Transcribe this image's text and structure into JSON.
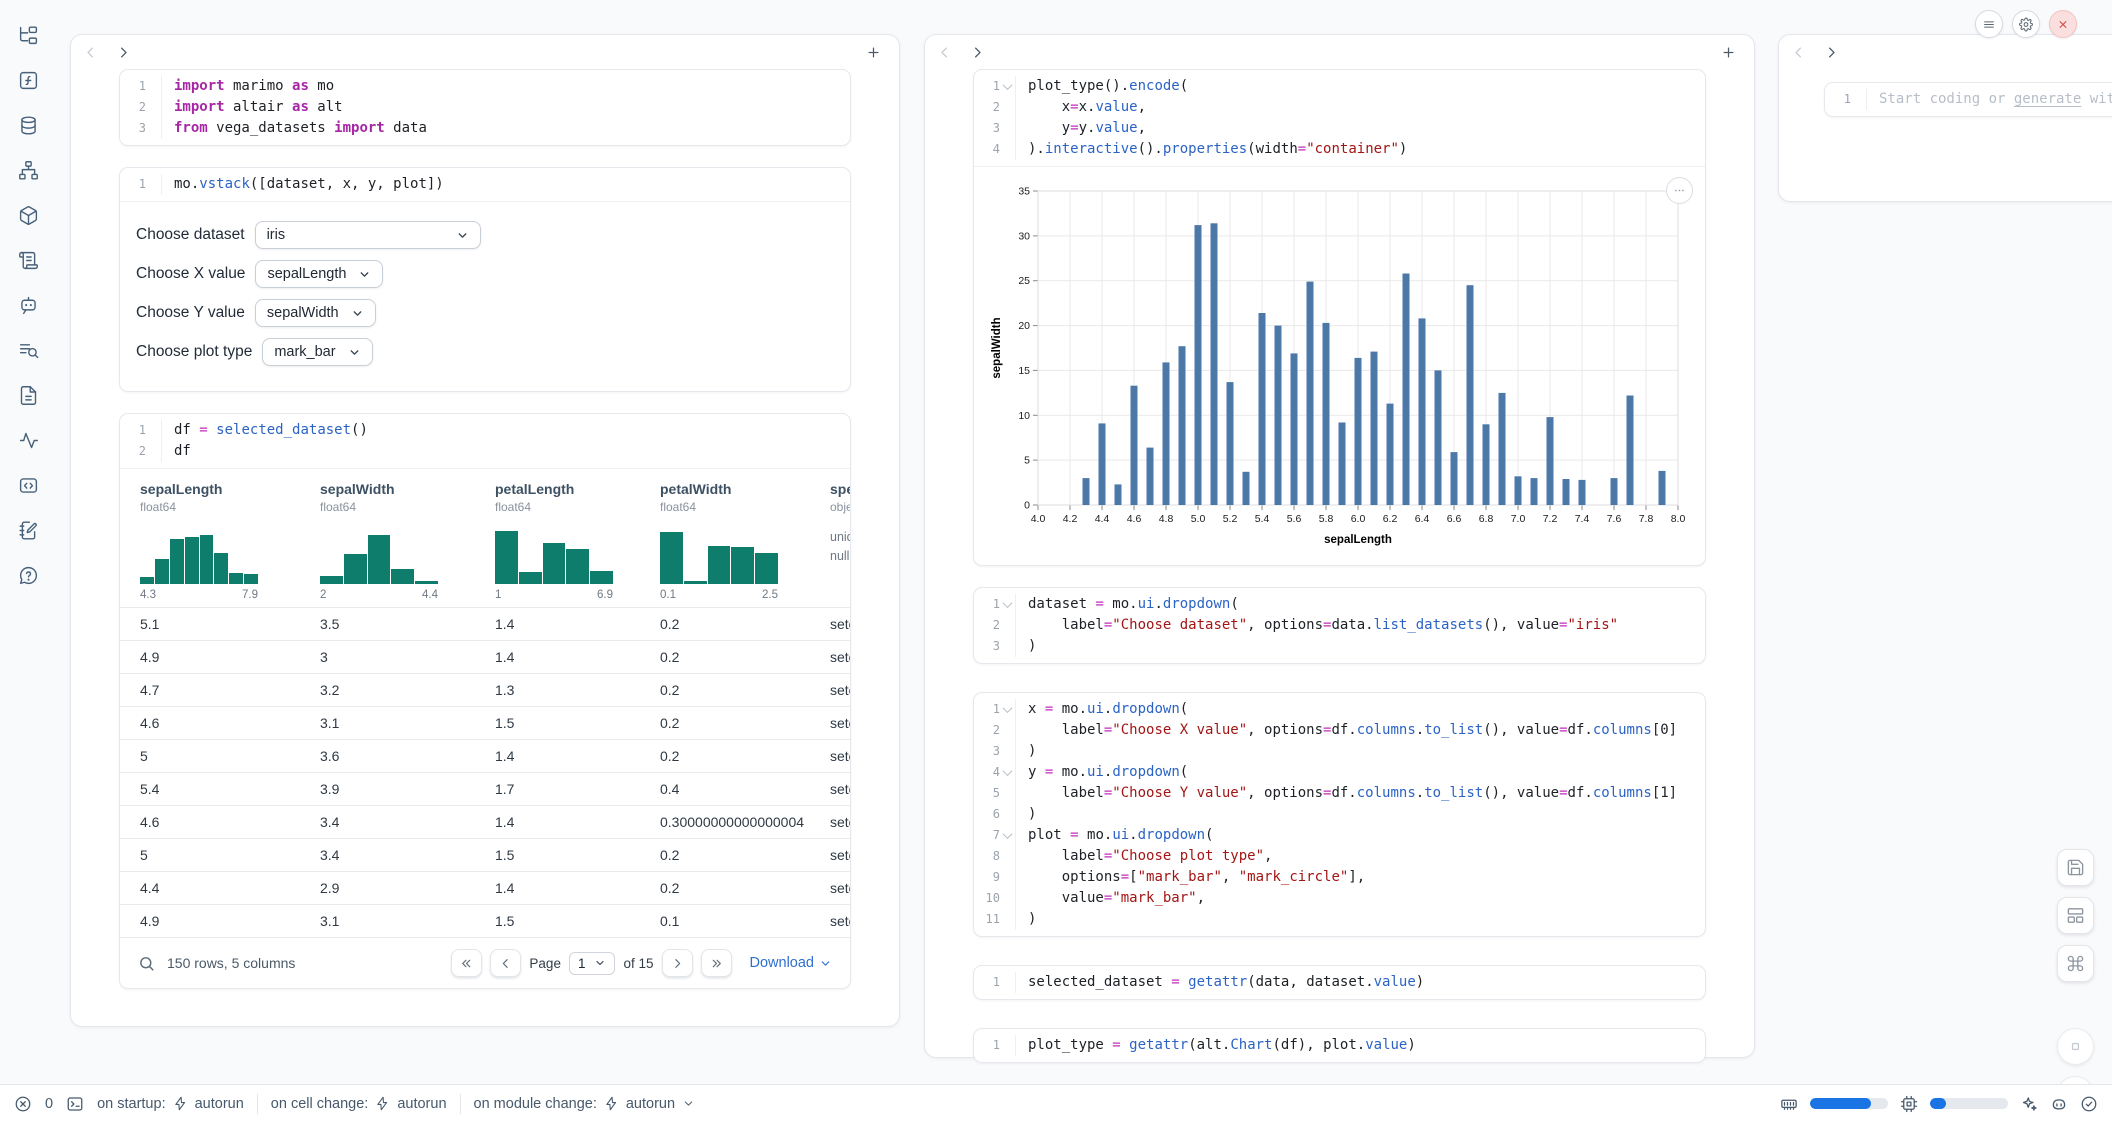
{
  "colors": {
    "accent_blue": "#1b74e4",
    "hist_teal": "#0e7d6c",
    "bar_blue": "#4c78a8",
    "code_keyword": "#a626a4",
    "code_function": "#2b63c5",
    "code_string": "#a31515",
    "close_red": "#d64545"
  },
  "sidebar": {
    "icons": [
      "file-explorer",
      "functions",
      "datasources",
      "dependency-graph",
      "packages",
      "logs",
      "ai-chat",
      "scratchpad",
      "documentation",
      "tracing",
      "snippets",
      "notebook",
      "help"
    ]
  },
  "left_panel": {
    "cells": {
      "imports": {
        "lines": [
          {
            "n": "1",
            "t": [
              [
                "kw",
                "import"
              ],
              [
                "pl",
                " marimo "
              ],
              [
                "kw",
                "as"
              ],
              [
                "pl",
                " mo"
              ]
            ]
          },
          {
            "n": "2",
            "t": [
              [
                "kw",
                "import"
              ],
              [
                "pl",
                " altair "
              ],
              [
                "kw",
                "as"
              ],
              [
                "pl",
                " alt"
              ]
            ]
          },
          {
            "n": "3",
            "t": [
              [
                "kw",
                "from"
              ],
              [
                "pl",
                " vega_datasets "
              ],
              [
                "kw",
                "import"
              ],
              [
                "pl",
                " data"
              ]
            ]
          }
        ]
      },
      "vstack": {
        "lines": [
          {
            "n": "1",
            "t": [
              [
                "pl",
                "mo."
              ],
              [
                "fn",
                "vstack"
              ],
              [
                "pl",
                "([dataset, x, y, plot])"
              ]
            ]
          }
        ],
        "output": {
          "dropdowns": [
            {
              "label": "Choose dataset",
              "value": "iris"
            },
            {
              "label": "Choose X value",
              "value": "sepalLength"
            },
            {
              "label": "Choose Y value",
              "value": "sepalWidth"
            },
            {
              "label": "Choose plot type",
              "value": "mark_bar"
            }
          ]
        }
      },
      "df": {
        "lines": [
          {
            "n": "1",
            "t": [
              [
                "pl",
                "df "
              ],
              [
                "op",
                "="
              ],
              [
                "pl",
                " "
              ],
              [
                "fn",
                "selected_dataset"
              ],
              [
                "pl",
                "()"
              ]
            ]
          },
          {
            "n": "2",
            "t": [
              [
                "pl",
                "df"
              ]
            ]
          }
        ]
      }
    },
    "table": {
      "columns": [
        {
          "name": "sepalLength",
          "dtype": "float64",
          "min": "4.3",
          "max": "7.9",
          "hist": [
            0.13,
            0.45,
            0.8,
            0.84,
            0.87,
            0.56,
            0.2,
            0.17
          ]
        },
        {
          "name": "sepalWidth",
          "dtype": "float64",
          "min": "2",
          "max": "4.4",
          "hist": [
            0.14,
            0.53,
            0.88,
            0.27,
            0.05
          ]
        },
        {
          "name": "petalLength",
          "dtype": "float64",
          "min": "1",
          "max": "6.9",
          "hist": [
            0.95,
            0.22,
            0.73,
            0.62,
            0.24
          ]
        },
        {
          "name": "petalWidth",
          "dtype": "float64",
          "min": "0.1",
          "max": "2.5",
          "hist": [
            0.92,
            0.05,
            0.68,
            0.66,
            0.56
          ]
        },
        {
          "name": "species",
          "dtype": "object",
          "meta": [
            "unique:",
            "nulls:"
          ]
        }
      ],
      "rows": [
        [
          "5.1",
          "3.5",
          "1.4",
          "0.2",
          "setosa"
        ],
        [
          "4.9",
          "3",
          "1.4",
          "0.2",
          "setosa"
        ],
        [
          "4.7",
          "3.2",
          "1.3",
          "0.2",
          "setosa"
        ],
        [
          "4.6",
          "3.1",
          "1.5",
          "0.2",
          "setosa"
        ],
        [
          "5",
          "3.6",
          "1.4",
          "0.2",
          "setosa"
        ],
        [
          "5.4",
          "3.9",
          "1.7",
          "0.4",
          "setosa"
        ],
        [
          "4.6",
          "3.4",
          "1.4",
          "0.30000000000000004",
          "setosa"
        ],
        [
          "5",
          "3.4",
          "1.5",
          "0.2",
          "setosa"
        ],
        [
          "4.4",
          "2.9",
          "1.4",
          "0.2",
          "setosa"
        ],
        [
          "4.9",
          "3.1",
          "1.5",
          "0.1",
          "setosa"
        ]
      ],
      "footer": {
        "summary": "150 rows, 5 columns",
        "page_label": "Page",
        "page_value": "1",
        "of_text": "of 15",
        "download_label": "Download"
      }
    }
  },
  "middle_panel": {
    "cells": {
      "plot": {
        "lines": [
          {
            "n": "1",
            "fold": true,
            "t": [
              [
                "pl",
                "plot_type"
              ],
              [
                "pl",
                "()."
              ],
              [
                "fn",
                "encode"
              ],
              [
                "pl",
                "("
              ]
            ]
          },
          {
            "n": "2",
            "t": [
              [
                "pl",
                "    x"
              ],
              [
                "op",
                "="
              ],
              [
                "pl",
                "x."
              ],
              [
                "fn",
                "value"
              ],
              [
                "pl",
                ","
              ]
            ]
          },
          {
            "n": "3",
            "t": [
              [
                "pl",
                "    y"
              ],
              [
                "op",
                "="
              ],
              [
                "pl",
                "y."
              ],
              [
                "fn",
                "value"
              ],
              [
                "pl",
                ","
              ]
            ]
          },
          {
            "n": "4",
            "t": [
              [
                "pl",
                ")."
              ],
              [
                "fn",
                "interactive"
              ],
              [
                "pl",
                "()."
              ],
              [
                "fn",
                "properties"
              ],
              [
                "pl",
                "(width"
              ],
              [
                "op",
                "="
              ],
              [
                "str",
                "\"container\""
              ],
              [
                "pl",
                ")"
              ]
            ]
          }
        ]
      },
      "dataset": {
        "lines": [
          {
            "n": "1",
            "fold": true,
            "t": [
              [
                "pl",
                "dataset "
              ],
              [
                "op",
                "="
              ],
              [
                "pl",
                " mo."
              ],
              [
                "fn",
                "ui"
              ],
              [
                "pl",
                "."
              ],
              [
                "fn",
                "dropdown"
              ],
              [
                "pl",
                "("
              ]
            ]
          },
          {
            "n": "2",
            "t": [
              [
                "pl",
                "    label"
              ],
              [
                "op",
                "="
              ],
              [
                "str",
                "\"Choose dataset\""
              ],
              [
                "pl",
                ", options"
              ],
              [
                "op",
                "="
              ],
              [
                "pl",
                "data."
              ],
              [
                "fn",
                "list_datasets"
              ],
              [
                "pl",
                "(), value"
              ],
              [
                "op",
                "="
              ],
              [
                "str",
                "\"iris\""
              ]
            ]
          },
          {
            "n": "3",
            "t": [
              [
                "pl",
                ")"
              ]
            ]
          }
        ]
      },
      "xyplot": {
        "lines": [
          {
            "n": "1",
            "fold": true,
            "t": [
              [
                "pl",
                "x "
              ],
              [
                "op",
                "="
              ],
              [
                "pl",
                " mo."
              ],
              [
                "fn",
                "ui"
              ],
              [
                "pl",
                "."
              ],
              [
                "fn",
                "dropdown"
              ],
              [
                "pl",
                "("
              ]
            ]
          },
          {
            "n": "2",
            "t": [
              [
                "pl",
                "    label"
              ],
              [
                "op",
                "="
              ],
              [
                "str",
                "\"Choose X value\""
              ],
              [
                "pl",
                ", options"
              ],
              [
                "op",
                "="
              ],
              [
                "pl",
                "df."
              ],
              [
                "fn",
                "columns"
              ],
              [
                "pl",
                "."
              ],
              [
                "fn",
                "to_list"
              ],
              [
                "pl",
                "(), value"
              ],
              [
                "op",
                "="
              ],
              [
                "pl",
                "df."
              ],
              [
                "fn",
                "columns"
              ],
              [
                "pl",
                "[0]"
              ]
            ]
          },
          {
            "n": "3",
            "t": [
              [
                "pl",
                ")"
              ]
            ]
          },
          {
            "n": "4",
            "fold": true,
            "t": [
              [
                "pl",
                "y "
              ],
              [
                "op",
                "="
              ],
              [
                "pl",
                " mo."
              ],
              [
                "fn",
                "ui"
              ],
              [
                "pl",
                "."
              ],
              [
                "fn",
                "dropdown"
              ],
              [
                "pl",
                "("
              ]
            ]
          },
          {
            "n": "5",
            "t": [
              [
                "pl",
                "    label"
              ],
              [
                "op",
                "="
              ],
              [
                "str",
                "\"Choose Y value\""
              ],
              [
                "pl",
                ", options"
              ],
              [
                "op",
                "="
              ],
              [
                "pl",
                "df."
              ],
              [
                "fn",
                "columns"
              ],
              [
                "pl",
                "."
              ],
              [
                "fn",
                "to_list"
              ],
              [
                "pl",
                "(), value"
              ],
              [
                "op",
                "="
              ],
              [
                "pl",
                "df."
              ],
              [
                "fn",
                "columns"
              ],
              [
                "pl",
                "[1]"
              ]
            ]
          },
          {
            "n": "6",
            "t": [
              [
                "pl",
                ")"
              ]
            ]
          },
          {
            "n": "7",
            "fold": true,
            "t": [
              [
                "pl",
                "plot "
              ],
              [
                "op",
                "="
              ],
              [
                "pl",
                " mo."
              ],
              [
                "fn",
                "ui"
              ],
              [
                "pl",
                "."
              ],
              [
                "fn",
                "dropdown"
              ],
              [
                "pl",
                "("
              ]
            ]
          },
          {
            "n": "8",
            "t": [
              [
                "pl",
                "    label"
              ],
              [
                "op",
                "="
              ],
              [
                "str",
                "\"Choose plot type\""
              ],
              [
                "pl",
                ","
              ]
            ]
          },
          {
            "n": "9",
            "t": [
              [
                "pl",
                "    options"
              ],
              [
                "op",
                "="
              ],
              [
                "pl",
                "["
              ],
              [
                "str",
                "\"mark_bar\""
              ],
              [
                "pl",
                ", "
              ],
              [
                "str",
                "\"mark_circle\""
              ],
              [
                "pl",
                "],"
              ]
            ]
          },
          {
            "n": "10",
            "t": [
              [
                "pl",
                "    value"
              ],
              [
                "op",
                "="
              ],
              [
                "str",
                "\"mark_bar\""
              ],
              [
                "pl",
                ","
              ]
            ]
          },
          {
            "n": "11",
            "t": [
              [
                "pl",
                ")"
              ]
            ]
          }
        ]
      },
      "selected": {
        "lines": [
          {
            "n": "1",
            "t": [
              [
                "pl",
                "selected_dataset "
              ],
              [
                "op",
                "="
              ],
              [
                "pl",
                " "
              ],
              [
                "fn",
                "getattr"
              ],
              [
                "pl",
                "(data, dataset."
              ],
              [
                "fn",
                "value"
              ],
              [
                "pl",
                ")"
              ]
            ]
          }
        ]
      },
      "plot_type": {
        "lines": [
          {
            "n": "1",
            "t": [
              [
                "pl",
                "plot_type "
              ],
              [
                "op",
                "="
              ],
              [
                "pl",
                " "
              ],
              [
                "fn",
                "getattr"
              ],
              [
                "pl",
                "(alt."
              ],
              [
                "fn",
                "Chart"
              ],
              [
                "pl",
                "(df), plot."
              ],
              [
                "fn",
                "value"
              ],
              [
                "pl",
                ")"
              ]
            ]
          }
        ]
      }
    }
  },
  "chart_data": {
    "type": "bar",
    "xlabel": "sepalLength",
    "ylabel": "sepalWidth",
    "x": [
      4.3,
      4.4,
      4.5,
      4.6,
      4.7,
      4.8,
      4.9,
      5.0,
      5.1,
      5.2,
      5.3,
      5.4,
      5.5,
      5.6,
      5.7,
      5.8,
      5.9,
      6.0,
      6.1,
      6.2,
      6.3,
      6.4,
      6.5,
      6.6,
      6.7,
      6.8,
      6.9,
      7.0,
      7.1,
      7.2,
      7.3,
      7.4,
      7.6,
      7.7,
      7.9
    ],
    "values": [
      3.0,
      9.1,
      2.3,
      13.3,
      6.4,
      15.9,
      17.7,
      31.2,
      31.4,
      13.7,
      3.7,
      21.4,
      20.0,
      16.9,
      24.9,
      20.3,
      9.2,
      16.4,
      17.1,
      11.3,
      25.8,
      20.8,
      15.0,
      5.9,
      24.5,
      9.0,
      12.5,
      3.2,
      3.0,
      9.8,
      2.9,
      2.8,
      3.0,
      12.2,
      3.8
    ],
    "xlim": [
      4.0,
      8.0
    ],
    "ylim": [
      0,
      35
    ],
    "x_tick_step": 0.2,
    "y_tick_step": 5,
    "bar_color": "#4c78a8",
    "grid": true,
    "legend": "none"
  },
  "right_panel": {
    "cell": {
      "line_number": "1",
      "placeholder_pre": "Start coding or ",
      "placeholder_link": "generate",
      "placeholder_post": " with"
    }
  },
  "status_bar": {
    "error_count": "0",
    "groups": [
      {
        "label": "on startup:",
        "value": "autorun"
      },
      {
        "label": "on cell change:",
        "value": "autorun"
      },
      {
        "label": "on module change:",
        "value": "autorun"
      }
    ],
    "ram_pct": 78,
    "cpu_pct": 20
  }
}
